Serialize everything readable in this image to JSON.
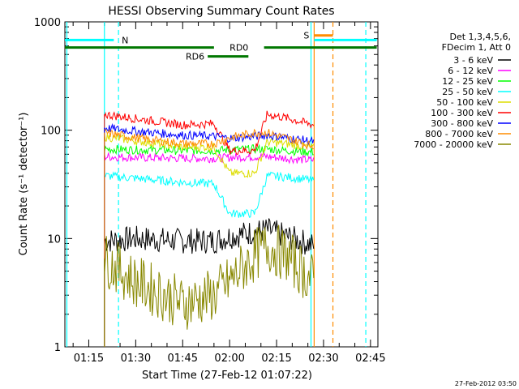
{
  "chart_data": {
    "type": "line",
    "title": "HESSI Observing Summary Count Rates",
    "xlabel": "Start Time (27-Feb-12 01:07:22)",
    "ylabel": "Count Rate (s⁻¹ detector⁻¹)",
    "yscale": "log",
    "ylim": [
      1,
      1000
    ],
    "xlim_minutes_since_start": [
      0,
      100
    ],
    "x_ticks": [
      "01:15",
      "01:30",
      "01:45",
      "02:00",
      "02:15",
      "02:30",
      "02:45"
    ],
    "y_ticks": [
      "1",
      "10",
      "100",
      "1000"
    ],
    "legend": {
      "placement": "right",
      "header": [
        "Det 1,3,4,5,6,",
        "FDecim 1, Att 0"
      ],
      "entries": [
        {
          "label": "3 - 6 keV",
          "color": "#000000"
        },
        {
          "label": "6 - 12 keV",
          "color": "#ff00ff"
        },
        {
          "label": "12 - 25 keV",
          "color": "#00ff00"
        },
        {
          "label": "25 - 50 keV",
          "color": "#00ffff"
        },
        {
          "label": "50 - 100 keV",
          "color": "#dddd00"
        },
        {
          "label": "100 - 300 keV",
          "color": "#ff0000"
        },
        {
          "label": "300 - 800 keV",
          "color": "#0000ff"
        },
        {
          "label": "800 - 7000 keV",
          "color": "#ff8c00"
        },
        {
          "label": "7000 - 20000 keV",
          "color": "#888800"
        }
      ]
    },
    "series": [
      {
        "name": "3 - 6 keV",
        "color": "#000000",
        "x": [
          "01:20",
          "01:30",
          "01:45",
          "01:55",
          "02:00",
          "02:08",
          "02:12",
          "02:18",
          "02:25",
          "02:27"
        ],
        "values": [
          9.5,
          10,
          9.5,
          9.5,
          10.5,
          11.5,
          12,
          10.5,
          9,
          8.5
        ]
      },
      {
        "name": "6 - 12 keV",
        "color": "#ff00ff",
        "x": [
          "01:20",
          "01:30",
          "01:45",
          "01:55",
          "02:00",
          "02:08",
          "02:12",
          "02:18",
          "02:25",
          "02:27"
        ],
        "values": [
          57,
          56,
          55,
          55,
          56,
          57,
          57,
          55,
          53,
          53
        ]
      },
      {
        "name": "12 - 25 keV",
        "color": "#00ff00",
        "x": [
          "01:20",
          "01:30",
          "01:45",
          "01:55",
          "02:00",
          "02:08",
          "02:12",
          "02:18",
          "02:25",
          "02:27"
        ],
        "values": [
          67,
          66,
          65,
          65,
          66,
          67,
          67,
          65,
          63,
          63
        ]
      },
      {
        "name": "25 - 50 keV",
        "color": "#00ffff",
        "x": [
          "01:20",
          "01:30",
          "01:45",
          "01:55",
          "02:00",
          "02:08",
          "02:12",
          "02:18",
          "02:25",
          "02:27"
        ],
        "values": [
          38,
          36,
          33,
          32,
          17,
          17,
          38,
          37,
          35,
          34
        ]
      },
      {
        "name": "50 - 100 keV",
        "color": "#dddd00",
        "x": [
          "01:20",
          "01:30",
          "01:45",
          "01:55",
          "02:00",
          "02:08",
          "02:12",
          "02:18",
          "02:25",
          "02:27"
        ],
        "values": [
          87,
          80,
          70,
          70,
          40,
          40,
          78,
          75,
          70,
          68
        ]
      },
      {
        "name": "100 - 300 keV",
        "color": "#ff0000",
        "x": [
          "01:20",
          "01:30",
          "01:45",
          "01:55",
          "02:00",
          "02:08",
          "02:12",
          "02:18",
          "02:25",
          "02:27"
        ],
        "values": [
          140,
          128,
          112,
          115,
          65,
          65,
          140,
          130,
          115,
          112
        ]
      },
      {
        "name": "300 - 800 keV",
        "color": "#0000ff",
        "x": [
          "01:20",
          "01:30",
          "01:45",
          "01:55",
          "02:00",
          "02:08",
          "02:12",
          "02:18",
          "02:25",
          "02:27"
        ],
        "values": [
          105,
          98,
          90,
          88,
          84,
          88,
          90,
          85,
          80,
          78
        ]
      },
      {
        "name": "800 - 7000 keV",
        "color": "#ff8c00",
        "x": [
          "01:20",
          "01:30",
          "01:45",
          "01:55",
          "02:00",
          "02:08",
          "02:12",
          "02:18",
          "02:25",
          "02:27"
        ],
        "values": [
          95,
          85,
          75,
          75,
          85,
          95,
          95,
          85,
          73,
          72
        ]
      },
      {
        "name": "7000 - 20000 keV",
        "color": "#888800",
        "x": [
          "01:20",
          "01:30",
          "01:45",
          "01:55",
          "02:00",
          "02:08",
          "02:12",
          "02:18",
          "02:25",
          "02:27"
        ],
        "values": [
          6.5,
          4,
          2.5,
          3,
          4,
          7,
          8.5,
          7,
          4.5,
          4
        ]
      }
    ],
    "annotations": [
      {
        "label": "N",
        "color": "#00ffff",
        "from": "01:07:22",
        "to": "01:24:30",
        "level": 680
      },
      {
        "label": "N",
        "color": "#00ffff",
        "from": "02:27:00",
        "to": "02:47:00",
        "level": 680
      },
      {
        "label": "S",
        "color": "#ff8c00",
        "from": "02:27:00",
        "to": "02:33:00",
        "level": 750
      },
      {
        "label": "RD0",
        "color": "#007700",
        "from": "01:07:22",
        "to": "02:47:00",
        "level": 580
      },
      {
        "label": "RD6",
        "color": "#007700",
        "from": "01:53:00",
        "to": "02:06:00",
        "level": 480
      }
    ],
    "vertical_lines": [
      {
        "x": "01:08:00",
        "color": "#00ffff",
        "style": "solid"
      },
      {
        "x": "01:20:00",
        "color": "#00ffff",
        "style": "solid"
      },
      {
        "x": "01:24:30",
        "color": "#00ffff",
        "style": "dashed"
      },
      {
        "x": "02:26:00",
        "color": "#00ffff",
        "style": "solid"
      },
      {
        "x": "02:27:00",
        "color": "#ff8c00",
        "style": "solid"
      },
      {
        "x": "02:33:00",
        "color": "#ff8c00",
        "style": "dashed"
      },
      {
        "x": "02:43:30",
        "color": "#00ffff",
        "style": "dashed"
      }
    ],
    "grid": false
  },
  "footer_stamp": "27-Feb-2012 03:50"
}
